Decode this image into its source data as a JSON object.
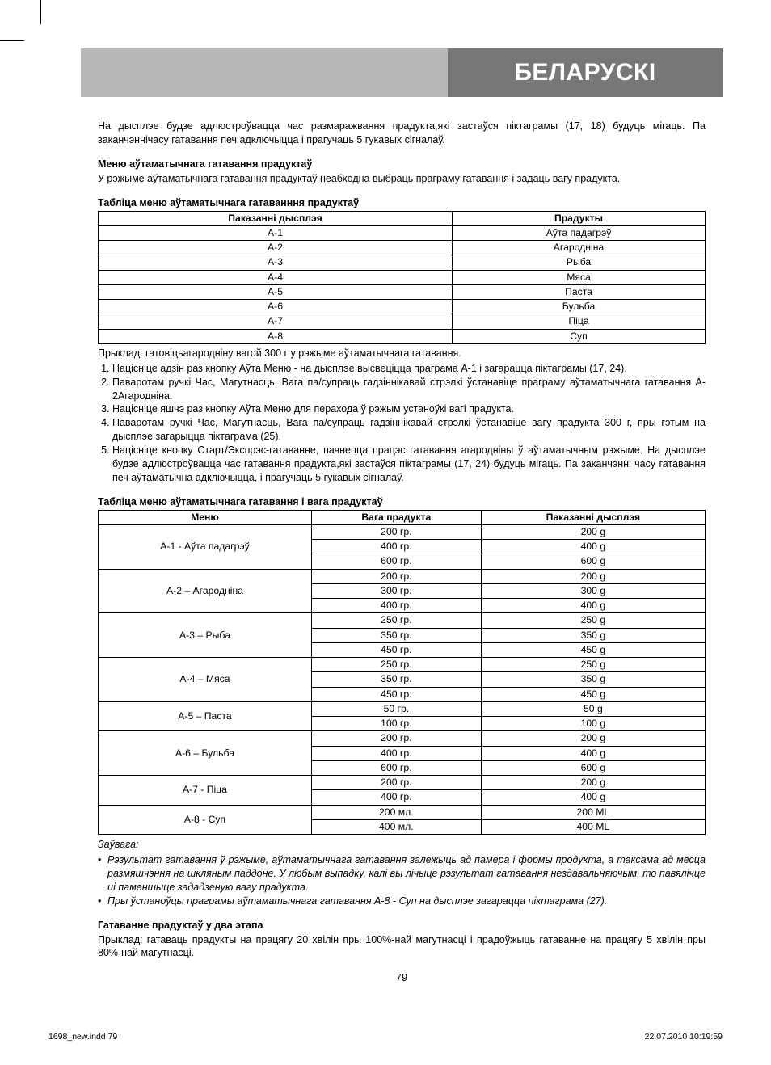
{
  "header": {
    "title": "БЕЛАРУСКI"
  },
  "intro": "На дысплэе будзе адлюстроўвацца час размаражвання прадукта,які застаўся піктаграмы (17, 18) будуць мігаць. Па заканчэннічасу гатавання печ адключыцца і прагучаць 5 гукавых сігналаў.",
  "menu_section": {
    "title": "Меню аўтаматычнага гатавання прадуктаў",
    "desc": "У рэжыме аўтаматычнага гатавання прадуктаў неабходна выбраць праграму гатавання і задаць вагу прадукта."
  },
  "table1_title": "Табліца меню аўтаматычнага гатаванння прадуктаў",
  "table1": {
    "headers": [
      "Паказанні дысплэя",
      "Прадукты"
    ],
    "rows": [
      [
        "A-1",
        "Аўта падагрэў"
      ],
      [
        "A-2",
        "Агародніна"
      ],
      [
        "A-3",
        "Рыба"
      ],
      [
        "A-4",
        "Мяса"
      ],
      [
        "A-5",
        "Паста"
      ],
      [
        "A-6",
        "Бульба"
      ],
      [
        "A-7",
        "Піца"
      ],
      [
        "A-8",
        "Суп"
      ]
    ]
  },
  "example_intro": "Прыклад: гатовіцьагародніну вагой 300 г у рэжыме аўтаматычнага гатавання.",
  "example_steps": [
    "Націсніце адзін раз кнопку Аўта Меню - на дысплэе высвеціцца праграма A-1 і загарацца піктаграмы (17, 24).",
    "Паваротам ручкі Час, Магутнасць, Вага па/супраць гадзіннікавай стрэлкі ўстанавіце праграму аўтаматычнага гатавання A-2Агародніна.",
    "Націсніце яшчэ раз кнопку Аўта Меню для перахода ў рэжым устаноўкі вагі прадукта.",
    "Паваротам ручкі Час, Магутнасць, Вага па/супраць гадзіннікавай стрэлкі ўстанавіце вагу прадукта 300 г, пры гэтым на дысплэе загарыцца піктаграма (25).",
    "Націсніце кнопку Старт/Экспрэс-гатаванне, пачнецца працэс гатавання агародніны ў аўтаматычным рэжыме. На дысплэе будзе адлюстроўвацца час гатавання прадукта,які застаўся піктаграмы (17, 24) будуць мігаць. Па заканчэнні часу гатавання печ аўтаматычна адключыцца, і прагучаць 5 гукавых сігналаў."
  ],
  "table2_title": "Табліца меню аўтаматычнага гатавання і вага прадуктаў",
  "table2": {
    "headers": [
      "Меню",
      "Вага прадукта",
      "Паказанні дысплэя"
    ],
    "groups": [
      {
        "menu": "A-1 - Аўта падагрэў",
        "rows": [
          [
            "200 гр.",
            "200 g"
          ],
          [
            "400 гр.",
            "400 g"
          ],
          [
            "600 гр.",
            "600 g"
          ]
        ]
      },
      {
        "menu": "A-2 – Агародніна",
        "rows": [
          [
            "200 гр.",
            "200 g"
          ],
          [
            "300 гр.",
            "300 g"
          ],
          [
            "400 гр.",
            "400 g"
          ]
        ]
      },
      {
        "menu": "A-3 – Рыба",
        "rows": [
          [
            "250 гр.",
            "250 g"
          ],
          [
            "350 гр.",
            "350 g"
          ],
          [
            "450 гр.",
            "450 g"
          ]
        ]
      },
      {
        "menu": "A-4 – Мяса",
        "rows": [
          [
            "250 гр.",
            "250 g"
          ],
          [
            "350 гр.",
            "350 g"
          ],
          [
            "450 гр.",
            "450 g"
          ]
        ]
      },
      {
        "menu": "A-5 – Паста",
        "rows": [
          [
            "50 гр.",
            "50 g"
          ],
          [
            "100 гр.",
            "100 g"
          ]
        ]
      },
      {
        "menu": "A-6 – Бульба",
        "rows": [
          [
            "200 гр.",
            "200 g"
          ],
          [
            "400 гр.",
            "400 g"
          ],
          [
            "600 гр.",
            "600 g"
          ]
        ]
      },
      {
        "menu": "A-7 - Піца",
        "rows": [
          [
            "200 гр.",
            "200 g"
          ],
          [
            "400 гр.",
            "400 g"
          ]
        ]
      },
      {
        "menu": "A-8 - Суп",
        "rows": [
          [
            "200 мл.",
            "200 ML"
          ],
          [
            "400 мл.",
            "400 ML"
          ]
        ]
      }
    ]
  },
  "note_title": "Заўвага:",
  "notes": [
    "Рэзультат гатавання ў рэжыме, аўтаматычнага гатавання залежыць ад памера і формы продукта, а таксама ад месца размяшчэння на шкляным паддоне. У любым выпадку, калі вы лічыце рэзультат гатавання нездавальняючым, то павялічце ці паменшыце зададзеную вагу прадукта.",
    "Пры ўстаноўцы праграмы аўтаматычнага гатавання A-8 - Суп на дысплэе загарацца піктаграма (27)."
  ],
  "two_stage": {
    "title": "Гатаванне прадуктаў у два этапа",
    "desc": "Прыклад: гатаваць прадукты на працягу 20 хвілін пры 100%-най магутнасці і прадоўжыць гатаванне на працягу 5 хвілін пры 80%-най магутнасці."
  },
  "page_num": "79",
  "footer": {
    "left": "1698_new.indd   79",
    "right": "22.07.2010   10:19:59"
  }
}
